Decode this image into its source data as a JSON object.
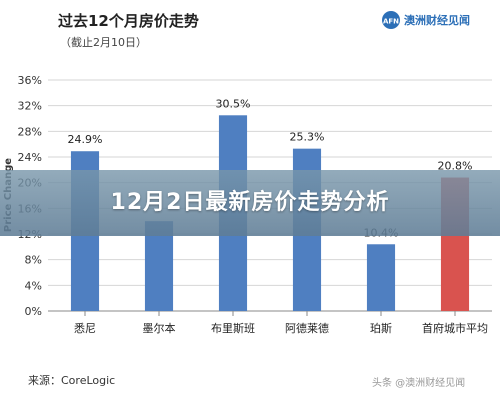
{
  "chart_data": {
    "type": "bar",
    "title": "过去12个月房价走势",
    "subtitle": "（截止2月10日）",
    "ylabel": "Price Change",
    "categories": [
      "悉尼",
      "墨尔本",
      "布里斯班",
      "阿德莱德",
      "珀斯",
      "首府城市平均"
    ],
    "values": [
      24.9,
      14.0,
      30.5,
      25.3,
      10.4,
      20.8
    ],
    "data_labels": [
      "24.9%",
      "",
      "30.5%",
      "25.3%",
      "10.4%",
      "20.8%"
    ],
    "ylim": [
      0,
      36
    ],
    "yticks": [
      "0%",
      "4%",
      "8%",
      "12%",
      "16%",
      "20%",
      "24%",
      "28%",
      "32%",
      "36%"
    ],
    "grid": true,
    "colors": {
      "bar": "#4f7fc1",
      "highlight": "#d9534f",
      "grid": "#d6d6d6",
      "axis": "#8a8a8a"
    },
    "highlight_index": 5
  },
  "logo": {
    "text": "澳洲财经见闻",
    "icon": "afn-logo-icon"
  },
  "source": "来源：CoreLogic",
  "watermark": "头条 @澳洲财经见闻",
  "banner": "12月2日最新房价走势分析"
}
